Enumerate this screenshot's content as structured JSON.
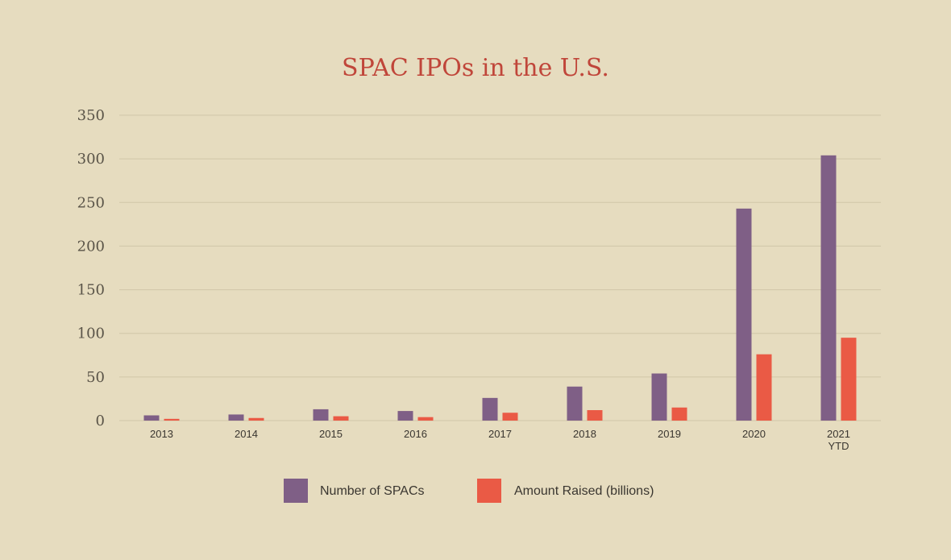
{
  "chart_data": {
    "type": "bar",
    "title": "SPAC IPOs in the U.S.",
    "categories": [
      "2013",
      "2014",
      "2015",
      "2016",
      "2017",
      "2018",
      "2019",
      "2020",
      "2021 YTD"
    ],
    "series": [
      {
        "name": "Number of SPACs",
        "values": [
          6,
          7,
          13,
          11,
          26,
          39,
          54,
          243,
          304
        ]
      },
      {
        "name": "Amount Raised (billions)",
        "values": [
          2,
          3,
          5,
          4,
          9,
          12,
          15,
          76,
          95
        ]
      }
    ],
    "yticks": [
      0,
      50,
      100,
      150,
      200,
      250,
      300,
      350
    ],
    "ylim": [
      0,
      350
    ],
    "grid": true,
    "legend_position": "bottom"
  },
  "colors": {
    "background": "#e6dcbf",
    "title": "#c0463a",
    "grid": "#d0c6a8",
    "series_1": "#7f5f86",
    "series_2": "#ea5a45"
  }
}
